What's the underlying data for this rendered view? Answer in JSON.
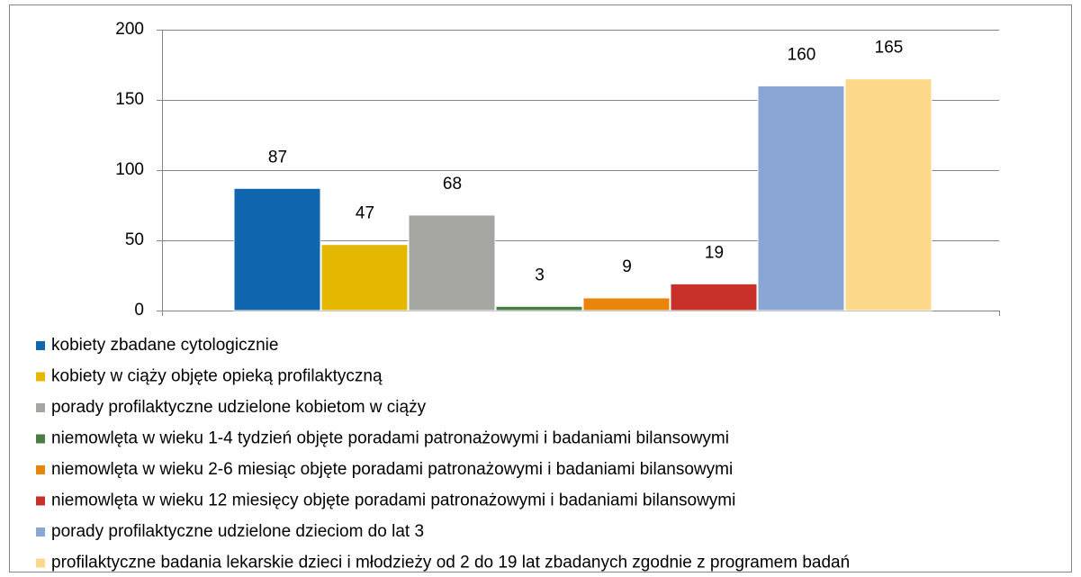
{
  "chart_data": {
    "type": "bar",
    "series": [
      {
        "name": "kobiety zbadane cytologicznie",
        "color": "#0f65ae",
        "values": [
          87
        ]
      },
      {
        "name": "kobiety w ciąży objęte opieką profilaktyczną",
        "color": "#e4b800",
        "values": [
          47
        ]
      },
      {
        "name": "porady profilaktyczne udzielone kobietom w ciąży",
        "color": "#a5a5a2",
        "values": [
          68
        ]
      },
      {
        "name": "niemowlęta w wieku 1-4 tydzień objęte poradami patronażowymi i badaniami bilansowymi",
        "color": "#4a7d45",
        "values": [
          3
        ]
      },
      {
        "name": "niemowlęta w wieku 2-6 miesiąc objęte poradami patronażowymi i badaniami bilansowymi",
        "color": "#e8850a",
        "values": [
          9
        ]
      },
      {
        "name": "niemowlęta w wieku 12 miesięcy objęte poradami patronażowymi i badaniami bilansowymi",
        "color": "#c8302a",
        "values": [
          19
        ]
      },
      {
        "name": "porady profilaktyczne udzielone dzieciom do lat 3",
        "color": "#8aa6d4",
        "values": [
          160
        ]
      },
      {
        "name": "profilaktyczne badania lekarskie dzieci i młodzieży od 2 do 19 lat zbadanych zgodnie z programem badań",
        "color": "#fcd98a",
        "values": [
          165
        ]
      }
    ],
    "ylim": [
      0,
      200
    ],
    "yticks": [
      0,
      50,
      100,
      150,
      200
    ],
    "grid": true,
    "legend": "bottom"
  }
}
